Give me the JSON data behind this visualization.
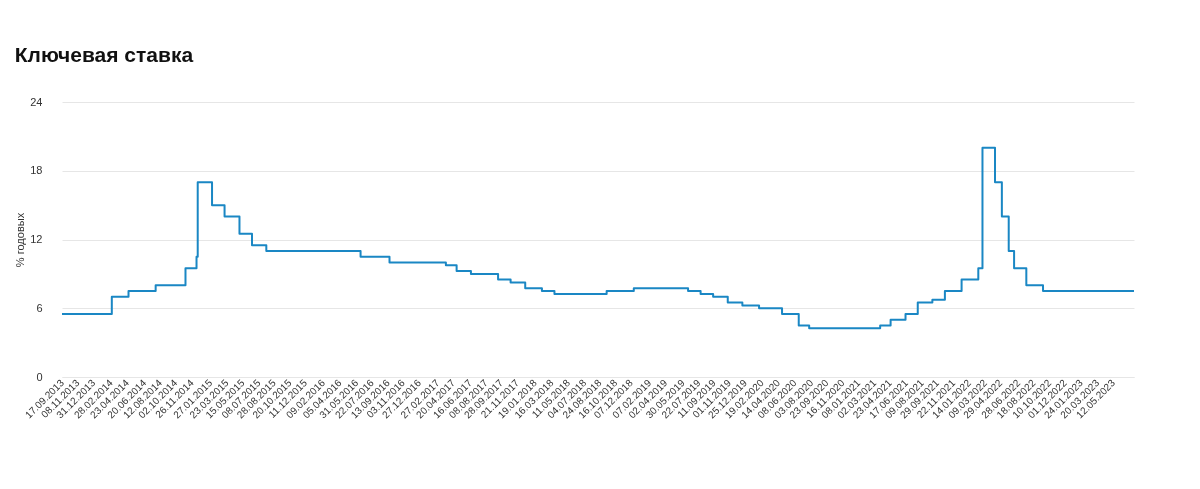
{
  "chart_data": {
    "type": "step",
    "title": "Ключевая ставка",
    "ylabel": "% годовых",
    "x": [
      "2013-09-17",
      "2014-03-03",
      "2014-04-28",
      "2014-07-28",
      "2014-11-05",
      "2014-12-12",
      "2014-12-16",
      "2015-02-02",
      "2015-03-16",
      "2015-05-05",
      "2015-06-16",
      "2015-08-03",
      "2016-06-14",
      "2016-09-19",
      "2017-03-27",
      "2017-05-02",
      "2017-06-19",
      "2017-09-18",
      "2017-10-30",
      "2017-12-18",
      "2018-02-12",
      "2018-03-26",
      "2018-09-17",
      "2018-12-17",
      "2019-06-17",
      "2019-07-29",
      "2019-09-09",
      "2019-10-28",
      "2019-12-16",
      "2020-02-10",
      "2020-04-27",
      "2020-06-22",
      "2020-07-27",
      "2021-03-22",
      "2021-04-26",
      "2021-06-15",
      "2021-07-26",
      "2021-09-13",
      "2021-10-25",
      "2021-12-20",
      "2022-02-14",
      "2022-02-28",
      "2022-04-11",
      "2022-05-04",
      "2022-05-27",
      "2022-06-14",
      "2022-07-25",
      "2022-09-19",
      "2023-07-21"
    ],
    "series": [
      {
        "color": "#1a87c4",
        "values": [
          5.5,
          7.0,
          7.5,
          8.0,
          9.5,
          10.5,
          17.0,
          15.0,
          14.0,
          12.5,
          11.5,
          11.0,
          10.5,
          10.0,
          9.75,
          9.25,
          9.0,
          8.5,
          8.25,
          7.75,
          7.5,
          7.25,
          7.5,
          7.75,
          7.5,
          7.25,
          7.0,
          6.5,
          6.25,
          6.0,
          5.5,
          4.5,
          4.25,
          4.5,
          5.0,
          5.5,
          6.5,
          6.75,
          7.5,
          8.5,
          9.5,
          20.0,
          17.0,
          14.0,
          11.0,
          9.5,
          8.0,
          7.5,
          7.5
        ]
      }
    ],
    "xlim": [
      "2013-09-17",
      "2023-07-21"
    ],
    "ylim": [
      0,
      24
    ],
    "yticks": [
      0,
      6,
      12,
      18,
      24
    ],
    "xticks": [
      {
        "value": "2013-09-17",
        "label": "17.09.2013"
      },
      {
        "value": "2013-11-08",
        "label": "08.11.2013"
      },
      {
        "value": "2013-12-31",
        "label": "31.12.2013"
      },
      {
        "value": "2014-02-28",
        "label": "28.02.2014"
      },
      {
        "value": "2014-04-23",
        "label": "23.04.2014"
      },
      {
        "value": "2014-06-20",
        "label": "20.06.2014"
      },
      {
        "value": "2014-08-12",
        "label": "12.08.2014"
      },
      {
        "value": "2014-10-02",
        "label": "02.10.2014"
      },
      {
        "value": "2014-11-26",
        "label": "26.11.2014"
      },
      {
        "value": "2015-01-27",
        "label": "27.01.2015"
      },
      {
        "value": "2015-03-23",
        "label": "23.03.2015"
      },
      {
        "value": "2015-05-15",
        "label": "15.05.2015"
      },
      {
        "value": "2015-07-08",
        "label": "08.07.2015"
      },
      {
        "value": "2015-08-28",
        "label": "28.08.2015"
      },
      {
        "value": "2015-10-20",
        "label": "20.10.2015"
      },
      {
        "value": "2015-12-11",
        "label": "11.12.2015"
      },
      {
        "value": "2016-02-09",
        "label": "09.02.2016"
      },
      {
        "value": "2016-04-05",
        "label": "05.04.2016"
      },
      {
        "value": "2016-05-31",
        "label": "31.05.2016"
      },
      {
        "value": "2016-07-22",
        "label": "22.07.2016"
      },
      {
        "value": "2016-09-13",
        "label": "13.09.2016"
      },
      {
        "value": "2016-11-03",
        "label": "03.11.2016"
      },
      {
        "value": "2016-12-27",
        "label": "27.12.2016"
      },
      {
        "value": "2017-02-27",
        "label": "27.02.2017"
      },
      {
        "value": "2017-04-20",
        "label": "20.04.2017"
      },
      {
        "value": "2017-06-16",
        "label": "16.06.2017"
      },
      {
        "value": "2017-08-08",
        "label": "08.08.2017"
      },
      {
        "value": "2017-09-28",
        "label": "28.09.2017"
      },
      {
        "value": "2017-11-21",
        "label": "21.11.2017"
      },
      {
        "value": "2018-01-19",
        "label": "19.01.2018"
      },
      {
        "value": "2018-03-16",
        "label": "16.03.2018"
      },
      {
        "value": "2018-05-11",
        "label": "11.05.2018"
      },
      {
        "value": "2018-07-04",
        "label": "04.07.2018"
      },
      {
        "value": "2018-08-24",
        "label": "24.08.2018"
      },
      {
        "value": "2018-10-16",
        "label": "16.10.2018"
      },
      {
        "value": "2018-12-07",
        "label": "07.12.2018"
      },
      {
        "value": "2019-02-07",
        "label": "07.02.2019"
      },
      {
        "value": "2019-04-02",
        "label": "02.04.2019"
      },
      {
        "value": "2019-05-30",
        "label": "30.05.2019"
      },
      {
        "value": "2019-07-22",
        "label": "22.07.2019"
      },
      {
        "value": "2019-09-11",
        "label": "11.09.2019"
      },
      {
        "value": "2019-11-01",
        "label": "01.11.2019"
      },
      {
        "value": "2019-12-25",
        "label": "25.12.2019"
      },
      {
        "value": "2020-02-19",
        "label": "19.02.2020"
      },
      {
        "value": "2020-04-14",
        "label": "14.04.2020"
      },
      {
        "value": "2020-06-08",
        "label": "08.06.2020"
      },
      {
        "value": "2020-08-03",
        "label": "03.08.2020"
      },
      {
        "value": "2020-09-23",
        "label": "23.09.2020"
      },
      {
        "value": "2020-11-16",
        "label": "16.11.2020"
      },
      {
        "value": "2021-01-08",
        "label": "08.01.2021"
      },
      {
        "value": "2021-03-02",
        "label": "02.03.2021"
      },
      {
        "value": "2021-04-23",
        "label": "23.04.2021"
      },
      {
        "value": "2021-06-17",
        "label": "17.06.2021"
      },
      {
        "value": "2021-08-09",
        "label": "09.08.2021"
      },
      {
        "value": "2021-09-29",
        "label": "29.09.2021"
      },
      {
        "value": "2021-11-22",
        "label": "22.11.2021"
      },
      {
        "value": "2022-01-14",
        "label": "14.01.2022"
      },
      {
        "value": "2022-03-09",
        "label": "09.03.2022"
      },
      {
        "value": "2022-04-29",
        "label": "29.04.2022"
      },
      {
        "value": "2022-06-28",
        "label": "28.06.2022"
      },
      {
        "value": "2022-08-18",
        "label": "18.08.2022"
      },
      {
        "value": "2022-10-10",
        "label": "10.10.2022"
      },
      {
        "value": "2022-12-01",
        "label": "01.12.2022"
      },
      {
        "value": "2023-01-24",
        "label": "24.01.2023"
      },
      {
        "value": "2023-03-20",
        "label": "20.03.2023"
      },
      {
        "value": "2023-05-12",
        "label": "12.05.2023"
      }
    ],
    "grid": "y",
    "marker": "none",
    "line_style": "solid"
  }
}
